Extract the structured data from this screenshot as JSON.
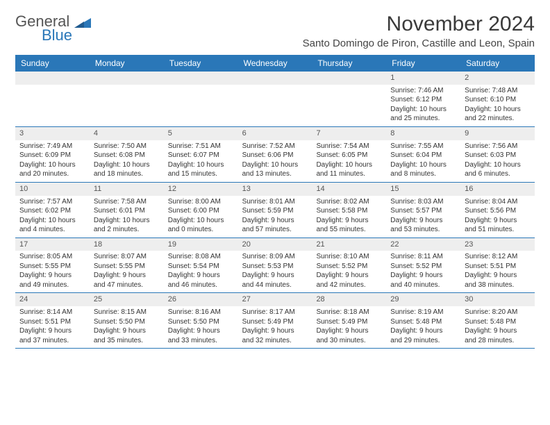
{
  "logo": {
    "part1": "General",
    "part2": "Blue"
  },
  "title": "November 2024",
  "location": "Santo Domingo de Piron, Castille and Leon, Spain",
  "colors": {
    "header_bg": "#2a77b8",
    "header_text": "#ffffff",
    "daynum_bg": "#eeeeee",
    "border": "#2a77b8",
    "body_text": "#333333",
    "logo_blue": "#2a77b8",
    "logo_grey": "#555555"
  },
  "day_names": [
    "Sunday",
    "Monday",
    "Tuesday",
    "Wednesday",
    "Thursday",
    "Friday",
    "Saturday"
  ],
  "weeks": [
    [
      null,
      null,
      null,
      null,
      null,
      {
        "n": "1",
        "sr": "Sunrise: 7:46 AM",
        "ss": "Sunset: 6:12 PM",
        "d1": "Daylight: 10 hours",
        "d2": "and 25 minutes."
      },
      {
        "n": "2",
        "sr": "Sunrise: 7:48 AM",
        "ss": "Sunset: 6:10 PM",
        "d1": "Daylight: 10 hours",
        "d2": "and 22 minutes."
      }
    ],
    [
      {
        "n": "3",
        "sr": "Sunrise: 7:49 AM",
        "ss": "Sunset: 6:09 PM",
        "d1": "Daylight: 10 hours",
        "d2": "and 20 minutes."
      },
      {
        "n": "4",
        "sr": "Sunrise: 7:50 AM",
        "ss": "Sunset: 6:08 PM",
        "d1": "Daylight: 10 hours",
        "d2": "and 18 minutes."
      },
      {
        "n": "5",
        "sr": "Sunrise: 7:51 AM",
        "ss": "Sunset: 6:07 PM",
        "d1": "Daylight: 10 hours",
        "d2": "and 15 minutes."
      },
      {
        "n": "6",
        "sr": "Sunrise: 7:52 AM",
        "ss": "Sunset: 6:06 PM",
        "d1": "Daylight: 10 hours",
        "d2": "and 13 minutes."
      },
      {
        "n": "7",
        "sr": "Sunrise: 7:54 AM",
        "ss": "Sunset: 6:05 PM",
        "d1": "Daylight: 10 hours",
        "d2": "and 11 minutes."
      },
      {
        "n": "8",
        "sr": "Sunrise: 7:55 AM",
        "ss": "Sunset: 6:04 PM",
        "d1": "Daylight: 10 hours",
        "d2": "and 8 minutes."
      },
      {
        "n": "9",
        "sr": "Sunrise: 7:56 AM",
        "ss": "Sunset: 6:03 PM",
        "d1": "Daylight: 10 hours",
        "d2": "and 6 minutes."
      }
    ],
    [
      {
        "n": "10",
        "sr": "Sunrise: 7:57 AM",
        "ss": "Sunset: 6:02 PM",
        "d1": "Daylight: 10 hours",
        "d2": "and 4 minutes."
      },
      {
        "n": "11",
        "sr": "Sunrise: 7:58 AM",
        "ss": "Sunset: 6:01 PM",
        "d1": "Daylight: 10 hours",
        "d2": "and 2 minutes."
      },
      {
        "n": "12",
        "sr": "Sunrise: 8:00 AM",
        "ss": "Sunset: 6:00 PM",
        "d1": "Daylight: 10 hours",
        "d2": "and 0 minutes."
      },
      {
        "n": "13",
        "sr": "Sunrise: 8:01 AM",
        "ss": "Sunset: 5:59 PM",
        "d1": "Daylight: 9 hours",
        "d2": "and 57 minutes."
      },
      {
        "n": "14",
        "sr": "Sunrise: 8:02 AM",
        "ss": "Sunset: 5:58 PM",
        "d1": "Daylight: 9 hours",
        "d2": "and 55 minutes."
      },
      {
        "n": "15",
        "sr": "Sunrise: 8:03 AM",
        "ss": "Sunset: 5:57 PM",
        "d1": "Daylight: 9 hours",
        "d2": "and 53 minutes."
      },
      {
        "n": "16",
        "sr": "Sunrise: 8:04 AM",
        "ss": "Sunset: 5:56 PM",
        "d1": "Daylight: 9 hours",
        "d2": "and 51 minutes."
      }
    ],
    [
      {
        "n": "17",
        "sr": "Sunrise: 8:05 AM",
        "ss": "Sunset: 5:55 PM",
        "d1": "Daylight: 9 hours",
        "d2": "and 49 minutes."
      },
      {
        "n": "18",
        "sr": "Sunrise: 8:07 AM",
        "ss": "Sunset: 5:55 PM",
        "d1": "Daylight: 9 hours",
        "d2": "and 47 minutes."
      },
      {
        "n": "19",
        "sr": "Sunrise: 8:08 AM",
        "ss": "Sunset: 5:54 PM",
        "d1": "Daylight: 9 hours",
        "d2": "and 46 minutes."
      },
      {
        "n": "20",
        "sr": "Sunrise: 8:09 AM",
        "ss": "Sunset: 5:53 PM",
        "d1": "Daylight: 9 hours",
        "d2": "and 44 minutes."
      },
      {
        "n": "21",
        "sr": "Sunrise: 8:10 AM",
        "ss": "Sunset: 5:52 PM",
        "d1": "Daylight: 9 hours",
        "d2": "and 42 minutes."
      },
      {
        "n": "22",
        "sr": "Sunrise: 8:11 AM",
        "ss": "Sunset: 5:52 PM",
        "d1": "Daylight: 9 hours",
        "d2": "and 40 minutes."
      },
      {
        "n": "23",
        "sr": "Sunrise: 8:12 AM",
        "ss": "Sunset: 5:51 PM",
        "d1": "Daylight: 9 hours",
        "d2": "and 38 minutes."
      }
    ],
    [
      {
        "n": "24",
        "sr": "Sunrise: 8:14 AM",
        "ss": "Sunset: 5:51 PM",
        "d1": "Daylight: 9 hours",
        "d2": "and 37 minutes."
      },
      {
        "n": "25",
        "sr": "Sunrise: 8:15 AM",
        "ss": "Sunset: 5:50 PM",
        "d1": "Daylight: 9 hours",
        "d2": "and 35 minutes."
      },
      {
        "n": "26",
        "sr": "Sunrise: 8:16 AM",
        "ss": "Sunset: 5:50 PM",
        "d1": "Daylight: 9 hours",
        "d2": "and 33 minutes."
      },
      {
        "n": "27",
        "sr": "Sunrise: 8:17 AM",
        "ss": "Sunset: 5:49 PM",
        "d1": "Daylight: 9 hours",
        "d2": "and 32 minutes."
      },
      {
        "n": "28",
        "sr": "Sunrise: 8:18 AM",
        "ss": "Sunset: 5:49 PM",
        "d1": "Daylight: 9 hours",
        "d2": "and 30 minutes."
      },
      {
        "n": "29",
        "sr": "Sunrise: 8:19 AM",
        "ss": "Sunset: 5:48 PM",
        "d1": "Daylight: 9 hours",
        "d2": "and 29 minutes."
      },
      {
        "n": "30",
        "sr": "Sunrise: 8:20 AM",
        "ss": "Sunset: 5:48 PM",
        "d1": "Daylight: 9 hours",
        "d2": "and 28 minutes."
      }
    ]
  ]
}
